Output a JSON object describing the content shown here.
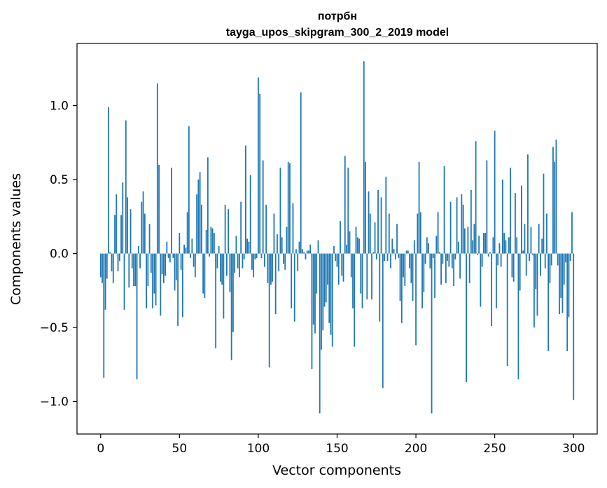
{
  "chart_data": {
    "type": "bar",
    "title_line1": "потрбн",
    "title_line2": "tayga_upos_skipgram_300_2_2019 model",
    "xlabel": "Vector components",
    "ylabel": "Components values",
    "xlim": [
      -15,
      315
    ],
    "ylim": [
      -1.22,
      1.42
    ],
    "xticks": [
      0,
      50,
      100,
      150,
      200,
      250,
      300
    ],
    "xtick_labels": [
      "0",
      "50",
      "100",
      "150",
      "200",
      "250",
      "300"
    ],
    "yticks": [
      -1.0,
      -0.5,
      0.0,
      0.5,
      1.0
    ],
    "ytick_labels": [
      "−1.0",
      "−0.5",
      "0.0",
      "0.5",
      "1.0"
    ],
    "color": "#1f77b4",
    "values": [
      -0.16,
      -0.2,
      -0.84,
      -0.38,
      -0.17,
      0.99,
      0.01,
      -0.12,
      -0.2,
      0.26,
      0.4,
      -0.12,
      -0.05,
      0.26,
      0.48,
      -0.38,
      0.9,
      0.38,
      -0.23,
      0.3,
      -0.1,
      -0.22,
      -0.22,
      -0.85,
      0.05,
      -0.1,
      0.35,
      0.42,
      0.27,
      -0.37,
      -0.22,
      0.2,
      -0.13,
      -0.37,
      -0.27,
      -0.35,
      1.15,
      0.6,
      -0.42,
      -0.14,
      -0.2,
      -0.15,
      0.08,
      -0.03,
      -0.06,
      0.58,
      -0.03,
      -0.25,
      -0.18,
      -0.49,
      0.14,
      -0.11,
      -0.43,
      0.06,
      0.04,
      0.28,
      0.86,
      -0.03,
      0.1,
      -0.09,
      -0.16,
      0.4,
      0.5,
      0.55,
      0.33,
      -0.27,
      -0.3,
      0.16,
      0.65,
      -0.02,
      0.18,
      0.17,
      0.14,
      -0.64,
      -0.1,
      0.05,
      -0.19,
      -0.21,
      -0.44,
      0.33,
      -0.15,
      0.3,
      -0.26,
      -0.72,
      -0.53,
      -0.13,
      0.12,
      -0.1,
      -0.16,
      0.35,
      -0.1,
      -0.04,
      0.73,
      0.1,
      0.08,
      0.53,
      -0.11,
      -0.16,
      -0.04,
      -0.03,
      1.19,
      1.08,
      -0.03,
      0.63,
      -0.09,
      0.33,
      -0.2,
      -0.77,
      -0.21,
      -0.19,
      0.27,
      -0.41,
      0.13,
      -0.12,
      0.58,
      0.11,
      -0.07,
      -0.11,
      0.18,
      0.62,
      0.61,
      -0.37,
      0.34,
      -0.46,
      0.03,
      -0.12,
      0.08,
      1.09,
      0.03,
      0.01,
      -0.04,
      0.02,
      0.02,
      0.06,
      -0.78,
      -0.48,
      -0.54,
      -0.27,
      0.09,
      -1.08,
      -0.65,
      -0.52,
      -0.36,
      -0.33,
      -0.21,
      -0.47,
      -0.55,
      -0.63,
      0.05,
      -0.05,
      -0.09,
      -0.21,
      0.22,
      -0.15,
      -0.19,
      0.66,
      0.06,
      0.58,
      0.15,
      -0.16,
      -0.37,
      -0.63,
      0.18,
      0.11,
      0.1,
      -0.27,
      -0.37,
      1.3,
      0.62,
      -0.31,
      0.42,
      0.27,
      -0.31,
      0.01,
      0.21,
      -0.04,
      0.43,
      -0.46,
      0.38,
      -0.91,
      -0.05,
      0.52,
      -0.05,
      0.27,
      -0.1,
      0.1,
      0.03,
      -0.04,
      0.2,
      -0.03,
      -0.32,
      -0.47,
      -0.16,
      -0.22,
      0.02,
      0.02,
      -0.1,
      -0.2,
      -0.32,
      0.09,
      -0.62,
      0.27,
      0.62,
      0.28,
      -0.37,
      -0.26,
      -0.07,
      0.11,
      0.07,
      -0.1,
      -1.08,
      -0.03,
      -0.3,
      0.12,
      0.28,
      0.01,
      -0.21,
      -0.07,
      0.59,
      -0.2,
      -0.05,
      -0.09,
      0.35,
      -0.1,
      -0.22,
      -0.04,
      0.38,
      0.08,
      -0.17,
      0.4,
      0.33,
      0.17,
      -0.87,
      0.18,
      -0.2,
      0.43,
      0.09,
      0.2,
      0.76,
      -0.01,
      0.12,
      -0.36,
      -0.09,
      0.14,
      0.14,
      0.63,
      -0.02,
      0.01,
      -0.49,
      0.11,
      0.83,
      -0.37,
      -0.08,
      0.07,
      -0.09,
      0.5,
      0.14,
      0.09,
      -0.76,
      0.11,
      0.58,
      -0.16,
      -0.19,
      0.41,
      0.11,
      -0.85,
      -0.25,
      0.46,
      0.02,
      0.2,
      -0.15,
      0.67,
      -0.05,
      0.18,
      -0.01,
      -0.5,
      -0.24,
      -0.42,
      0.2,
      -0.15,
      0.1,
      0.54,
      -0.1,
      0.27,
      -0.66,
      -0.2,
      -0.08,
      0.72,
      0.62,
      0.77,
      -0.08,
      -0.41,
      -0.3,
      -0.4,
      -0.21,
      -0.06,
      -0.66,
      -0.43,
      -0.05,
      0.28,
      -0.99
    ]
  }
}
